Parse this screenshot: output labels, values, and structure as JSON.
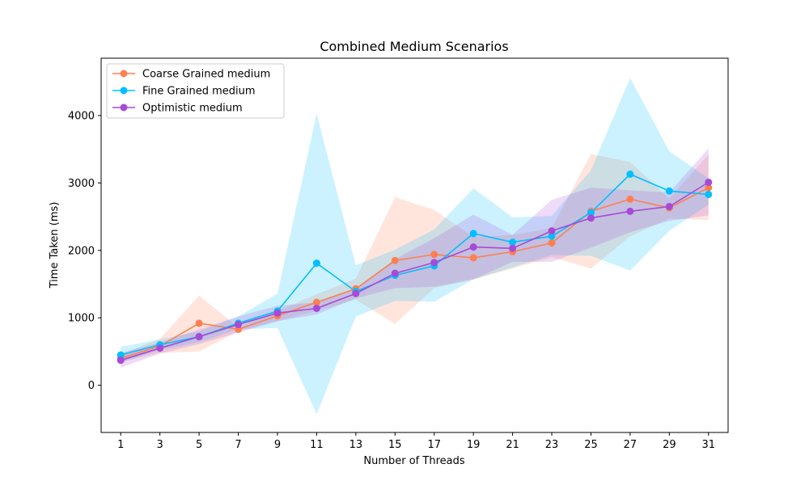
{
  "chart_data": {
    "type": "line",
    "title": "Combined Medium Scenarios",
    "xlabel": "Number of Threads",
    "ylabel": "Time Taken (ms)",
    "xlim": [
      0,
      32
    ],
    "ylim": [
      -700,
      4850
    ],
    "x_ticks": [
      1,
      3,
      5,
      7,
      9,
      11,
      13,
      15,
      17,
      19,
      21,
      23,
      25,
      27,
      29,
      31
    ],
    "y_ticks": [
      0,
      1000,
      2000,
      3000,
      4000
    ],
    "grid": false,
    "legend_position": "top-left",
    "x": [
      1,
      3,
      5,
      7,
      9,
      11,
      13,
      15,
      17,
      19,
      21,
      23,
      25,
      27,
      29,
      31
    ],
    "series": [
      {
        "name": "Coarse Grained medium",
        "color": "#ff7f50",
        "values": [
          400,
          580,
          920,
          830,
          1030,
          1230,
          1430,
          1850,
          1940,
          1890,
          1980,
          2110,
          2580,
          2760,
          2630,
          2930
        ],
        "band_lower": [
          340,
          480,
          500,
          800,
          950,
          1100,
          1270,
          910,
          1440,
          1570,
          1730,
          1900,
          1730,
          2210,
          2470,
          2450
        ],
        "band_upper": [
          460,
          690,
          1330,
          860,
          1100,
          1350,
          1580,
          2790,
          2600,
          2200,
          2230,
          2330,
          3430,
          3310,
          2770,
          3420
        ]
      },
      {
        "name": "Fine Grained medium",
        "color": "#00bfff",
        "values": [
          450,
          600,
          720,
          920,
          1100,
          1810,
          1390,
          1630,
          1770,
          2250,
          2120,
          2210,
          2560,
          3130,
          2880,
          2830
        ],
        "band_lower": [
          340,
          520,
          640,
          830,
          850,
          -430,
          1020,
          1250,
          1240,
          1570,
          1750,
          1930,
          1920,
          1700,
          2290,
          2680
        ],
        "band_upper": [
          570,
          680,
          800,
          1020,
          1360,
          4030,
          1780,
          2010,
          2310,
          2920,
          2490,
          2510,
          3190,
          4560,
          3470,
          3070
        ]
      },
      {
        "name": "Optimistic medium",
        "color": "#a64ad7",
        "values": [
          370,
          550,
          720,
          900,
          1070,
          1140,
          1360,
          1660,
          1820,
          2050,
          2030,
          2290,
          2480,
          2580,
          2650,
          3010
        ],
        "band_lower": [
          260,
          470,
          610,
          780,
          950,
          1050,
          1290,
          1440,
          1460,
          1570,
          1830,
          1830,
          2040,
          2270,
          2440,
          2520
        ],
        "band_upper": [
          480,
          630,
          830,
          1020,
          1180,
          1230,
          1440,
          1870,
          2180,
          2530,
          2230,
          2750,
          2930,
          2890,
          2860,
          3510
        ]
      }
    ]
  }
}
